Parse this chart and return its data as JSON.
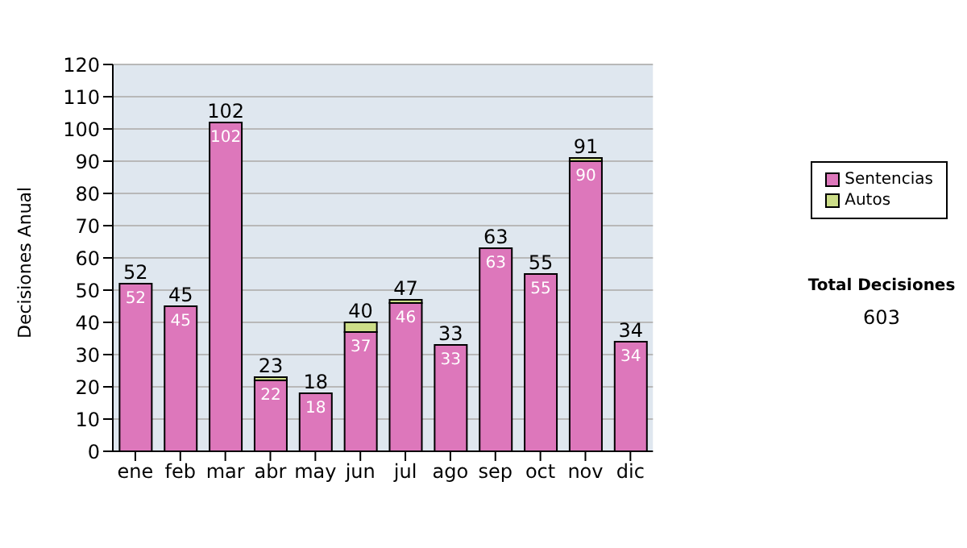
{
  "chart_data": {
    "type": "bar",
    "ylabel": "Decisiones Anual",
    "categories": [
      "ene",
      "feb",
      "mar",
      "abr",
      "may",
      "jun",
      "jul",
      "ago",
      "sep",
      "oct",
      "nov",
      "dic"
    ],
    "series": [
      {
        "name": "Sentencias",
        "color": "#dd77bb",
        "values": [
          52,
          45,
          102,
          22,
          18,
          37,
          46,
          33,
          63,
          55,
          90,
          34
        ],
        "value_labels": [
          "52",
          "45",
          "102",
          "22",
          "18",
          "37",
          "46",
          "33",
          "63",
          "55",
          "90",
          "34"
        ]
      },
      {
        "name": "Autos",
        "color": "#ccdd88",
        "values": [
          0,
          0,
          0,
          1,
          0,
          3,
          1,
          0,
          0,
          0,
          1,
          0
        ]
      }
    ],
    "stacked": true,
    "totals": [
      "52",
      "45",
      "102",
      "23",
      "18",
      "40",
      "47",
      "33",
      "63",
      "55",
      "91",
      "34"
    ],
    "ylim": [
      0,
      120
    ],
    "yticks": [
      0,
      10,
      20,
      30,
      40,
      50,
      60,
      70,
      80,
      90,
      100,
      110,
      120
    ],
    "grid": "y",
    "legend": "right",
    "annotations": [
      "Total Decisiones",
      "603"
    ]
  }
}
